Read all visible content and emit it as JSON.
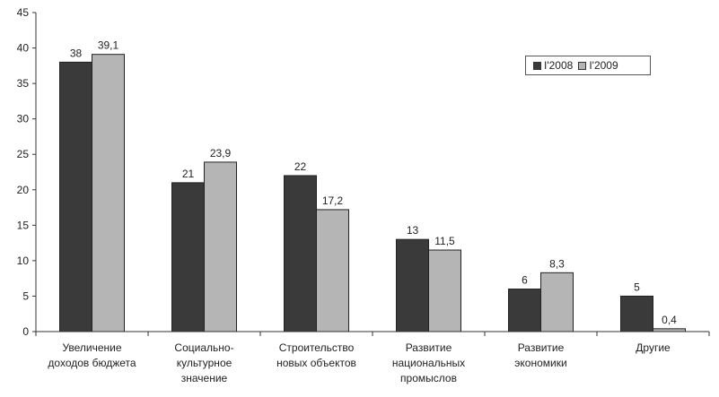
{
  "chart_data": {
    "type": "bar",
    "categories": [
      [
        "Увеличение",
        "доходов бюджета"
      ],
      [
        "Социально-",
        "культурное",
        "значение"
      ],
      [
        "Строительство",
        "новых объектов"
      ],
      [
        "Развитие",
        "национальных",
        "промыслов"
      ],
      [
        "Развитие",
        "экономики"
      ],
      [
        "Другие"
      ]
    ],
    "series": [
      {
        "name": "I'2008",
        "values": [
          38,
          21,
          22,
          13,
          6,
          5
        ],
        "labels": [
          "38",
          "21",
          "22",
          "13",
          "6",
          "5"
        ],
        "color": "#3a3a3a"
      },
      {
        "name": "I'2009",
        "values": [
          39.1,
          23.9,
          17.2,
          11.5,
          8.3,
          0.4
        ],
        "labels": [
          "39,1",
          "23,9",
          "17,2",
          "11,5",
          "8,3",
          "0,4"
        ],
        "color": "#b5b5b5"
      }
    ],
    "ylim": [
      0,
      45
    ],
    "yticks": [
      0,
      5,
      10,
      15,
      20,
      25,
      30,
      35,
      40,
      45
    ],
    "title": "",
    "xlabel": "",
    "ylabel": "",
    "legend_position": "top-right",
    "grid": false
  }
}
